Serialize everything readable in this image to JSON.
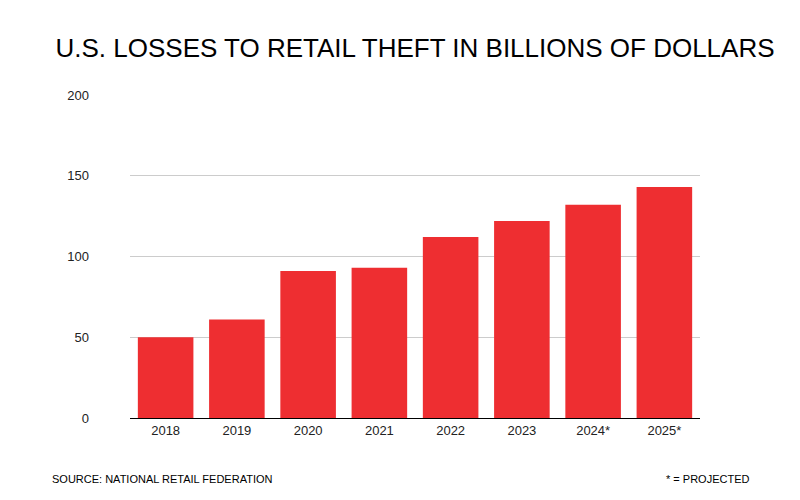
{
  "chart_data": {
    "type": "bar",
    "title": "U.S. LOSSES TO RETAIL THEFT IN BILLIONS OF DOLLARS",
    "categories": [
      "2018",
      "2019",
      "2020",
      "2021",
      "2022",
      "2023",
      "2024*",
      "2025*"
    ],
    "values": [
      50,
      61,
      91,
      93,
      112,
      122,
      132,
      143
    ],
    "color": "#ee2e31",
    "ylim": [
      0,
      200
    ],
    "yticks": [
      0,
      50,
      100,
      150,
      200
    ],
    "grid": true,
    "annotations": [
      "SOURCE: NATIONAL RETAIL FEDERATION",
      "* = PROJECTED"
    ]
  }
}
